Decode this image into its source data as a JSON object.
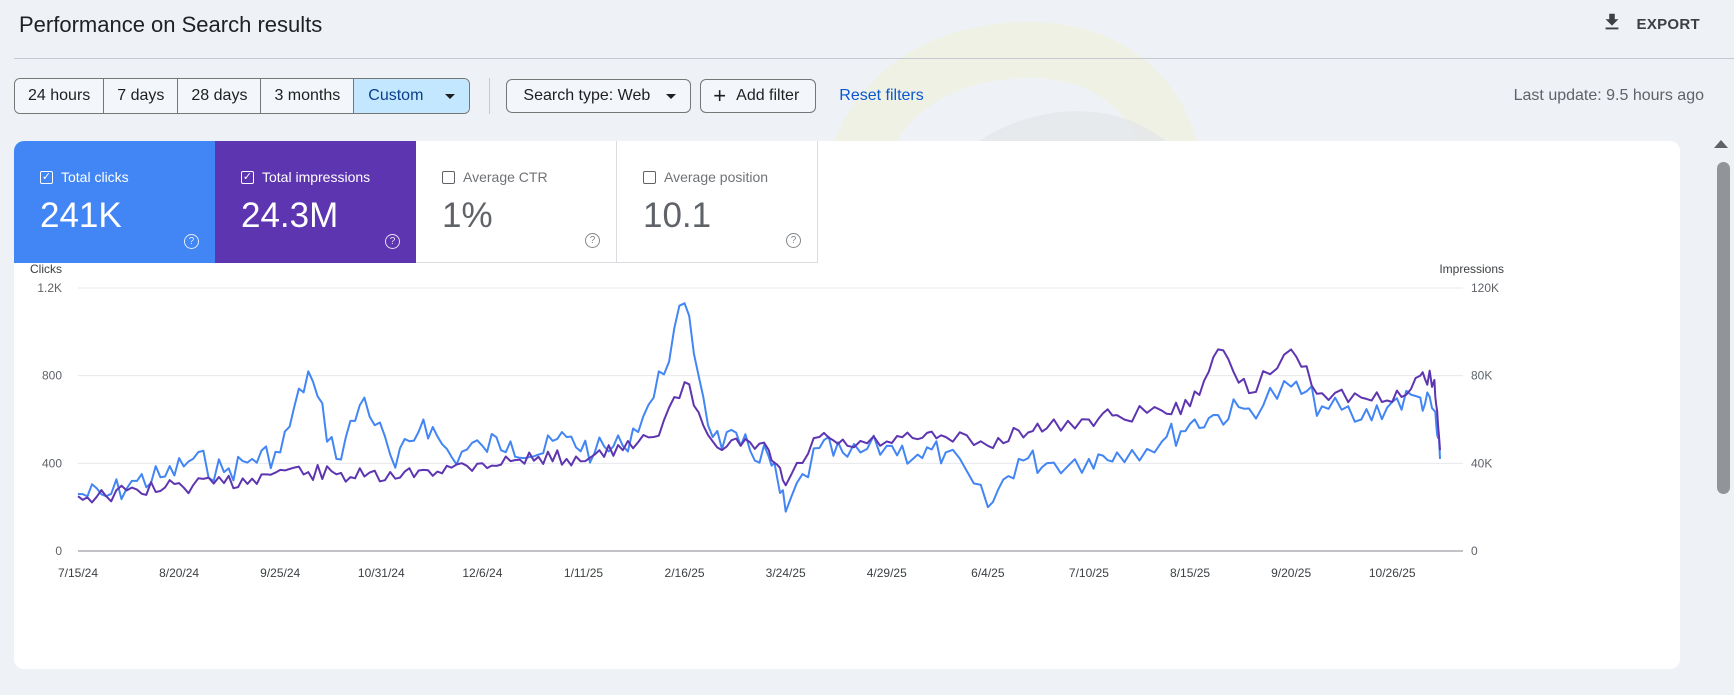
{
  "header": {
    "title": "Performance on Search results",
    "export_label": "EXPORT"
  },
  "filters": {
    "date_ranges": [
      "24 hours",
      "7 days",
      "28 days",
      "3 months",
      "Custom"
    ],
    "active_date_range": "Custom",
    "search_type": "Search type: Web",
    "add_filter": "Add filter",
    "reset": "Reset filters",
    "last_update": "Last update: 9.5 hours ago"
  },
  "metrics": [
    {
      "label": "Total clicks",
      "value": "241K",
      "checked": true,
      "color": "#4285f4"
    },
    {
      "label": "Total impressions",
      "value": "24.3M",
      "checked": true,
      "color": "#5e35b1"
    },
    {
      "label": "Average CTR",
      "value": "1%",
      "checked": false,
      "color": "#ffffff"
    },
    {
      "label": "Average position",
      "value": "10.1",
      "checked": false,
      "color": "#ffffff"
    }
  ],
  "colors": {
    "clicks": "#4285f4",
    "impressions": "#5e35b1",
    "link": "#0b57d0",
    "active_chip": "#c2e7ff"
  },
  "chart_data": {
    "type": "line",
    "left_axis_label": "Clicks",
    "right_axis_label": "Impressions",
    "left_ticks": [
      "0",
      "400",
      "800",
      "1.2K"
    ],
    "right_ticks": [
      "0",
      "40K",
      "80K",
      "120K"
    ],
    "ylim_left": [
      0,
      1200
    ],
    "ylim_right": [
      0,
      120000
    ],
    "x_tick_labels": [
      "7/15/24",
      "8/20/24",
      "9/25/24",
      "10/31/24",
      "12/6/24",
      "1/11/25",
      "2/16/25",
      "3/24/25",
      "4/29/25",
      "6/4/25",
      "7/10/25",
      "8/15/25",
      "9/20/25",
      "10/26/25"
    ],
    "grid": true,
    "series": [
      {
        "name": "Clicks",
        "axis": "left",
        "x": [
          "7/15/24",
          "7/25/24",
          "8/5/24",
          "8/15/24",
          "8/25/24",
          "9/5/24",
          "9/15/24",
          "9/25/24",
          "10/5/24",
          "10/15/24",
          "10/25/24",
          "11/5/24",
          "11/15/24",
          "11/25/24",
          "12/6/24",
          "12/16/24",
          "12/26/24",
          "1/5/25",
          "1/15/25",
          "1/25/25",
          "2/5/25",
          "2/16/25",
          "2/26/25",
          "3/8/25",
          "3/18/25",
          "3/24/25",
          "4/5/25",
          "4/15/25",
          "4/29/25",
          "5/10/25",
          "5/20/25",
          "6/4/25",
          "6/15/25",
          "6/25/25",
          "7/10/25",
          "7/20/25",
          "8/5/25",
          "8/15/25",
          "8/25/25",
          "9/5/25",
          "9/20/25",
          "10/1/25",
          "10/15/25",
          "10/26/25",
          "11/5/25",
          "11/10/25",
          "11/12/25"
        ],
        "values": [
          260,
          250,
          320,
          340,
          420,
          360,
          420,
          450,
          820,
          420,
          700,
          380,
          600,
          430,
          480,
          500,
          440,
          520,
          450,
          480,
          700,
          1130,
          520,
          480,
          430,
          180,
          470,
          430,
          480,
          440,
          450,
          200,
          420,
          400,
          420,
          450,
          500,
          580,
          620,
          650,
          750,
          660,
          600,
          680,
          700,
          640,
          420
        ]
      },
      {
        "name": "Impressions",
        "axis": "right",
        "x": [
          "7/15/24",
          "7/25/24",
          "8/5/24",
          "8/15/24",
          "8/25/24",
          "9/5/24",
          "9/15/24",
          "9/25/24",
          "10/5/24",
          "10/15/24",
          "10/25/24",
          "11/5/24",
          "11/15/24",
          "11/25/24",
          "12/6/24",
          "12/16/24",
          "12/26/24",
          "1/5/25",
          "1/15/25",
          "1/25/25",
          "2/5/25",
          "2/16/25",
          "2/26/25",
          "3/8/25",
          "3/18/25",
          "3/24/25",
          "4/5/25",
          "4/15/25",
          "4/29/25",
          "5/10/25",
          "5/20/25",
          "6/4/25",
          "6/15/25",
          "6/25/25",
          "7/10/25",
          "7/20/25",
          "8/5/25",
          "8/15/25",
          "8/25/25",
          "9/5/25",
          "9/20/25",
          "10/1/25",
          "10/15/25",
          "10/26/25",
          "11/5/25",
          "11/10/25",
          "11/12/25"
        ],
        "values": [
          25000,
          25000,
          28000,
          29000,
          30000,
          31000,
          33000,
          37000,
          36000,
          35000,
          34000,
          33000,
          37000,
          38000,
          40000,
          41000,
          43000,
          42000,
          44000,
          46000,
          52000,
          77000,
          50000,
          48000,
          46000,
          30000,
          52000,
          48000,
          50000,
          51000,
          52000,
          48000,
          55000,
          56000,
          60000,
          62000,
          64000,
          66000,
          92000,
          72000,
          92000,
          72000,
          70000,
          68000,
          80000,
          78000,
          46000
        ]
      }
    ]
  }
}
